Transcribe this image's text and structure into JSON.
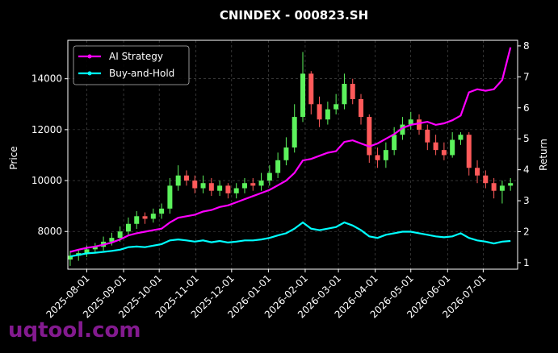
{
  "chart_data": {
    "type": "candlestick",
    "title": "CNINDEX - 000823.SH",
    "y_label": "Price",
    "y2_label": "Return",
    "watermark": "uqtool.com",
    "x": [
      "2025-07-18",
      "2025-07-25",
      "2025-08-01",
      "2025-08-08",
      "2025-08-15",
      "2025-08-22",
      "2025-08-29",
      "2025-09-05",
      "2025-09-12",
      "2025-09-19",
      "2025-09-26",
      "2025-10-03",
      "2025-10-10",
      "2025-10-17",
      "2025-10-24",
      "2025-10-31",
      "2025-11-07",
      "2025-11-14",
      "2025-11-21",
      "2025-11-28",
      "2025-12-05",
      "2025-12-12",
      "2025-12-19",
      "2025-12-26",
      "2026-01-02",
      "2026-01-09",
      "2026-01-16",
      "2026-01-23",
      "2026-01-30",
      "2026-02-06",
      "2026-02-13",
      "2026-02-20",
      "2026-02-27",
      "2026-03-06",
      "2026-03-13",
      "2026-03-20",
      "2026-03-27",
      "2026-04-03",
      "2026-04-10",
      "2026-04-17",
      "2026-04-24",
      "2026-05-01",
      "2026-05-08",
      "2026-05-15",
      "2026-05-22",
      "2026-05-29",
      "2026-06-05",
      "2026-06-12",
      "2026-06-19",
      "2026-06-26",
      "2026-07-03",
      "2026-07-10",
      "2026-07-17",
      "2026-07-24"
    ],
    "open": [
      6900,
      7050,
      7150,
      7300,
      7400,
      7600,
      7750,
      8000,
      8300,
      8600,
      8500,
      8700,
      8900,
      9800,
      10200,
      10000,
      9700,
      9900,
      9600,
      9800,
      9500,
      9700,
      9900,
      9800,
      10000,
      10300,
      10800,
      11300,
      12500,
      14200,
      13000,
      12400,
      12800,
      13000,
      13800,
      13200,
      12500,
      11000,
      10800,
      11200,
      11800,
      12200,
      12400,
      12000,
      11500,
      11200,
      11000,
      11600,
      11800,
      10500,
      10200,
      9900,
      9600,
      9800
    ],
    "high": [
      7250,
      7300,
      7450,
      7550,
      7800,
      7950,
      8200,
      8550,
      8800,
      8750,
      8900,
      9100,
      10100,
      10600,
      10400,
      10200,
      10200,
      10100,
      10000,
      9900,
      9900,
      10100,
      10100,
      10300,
      10600,
      11100,
      11700,
      13000,
      15050,
      14300,
      13300,
      13100,
      13400,
      14200,
      14000,
      13400,
      12600,
      11300,
      11500,
      12100,
      12500,
      12700,
      12600,
      12200,
      11800,
      11500,
      11900,
      11900,
      11900,
      10800,
      10400,
      10100,
      10000,
      10100
    ],
    "low": [
      6650,
      6850,
      7000,
      7150,
      7250,
      7450,
      7600,
      7850,
      8100,
      8300,
      8350,
      8500,
      8700,
      9600,
      9800,
      9500,
      9500,
      9400,
      9400,
      9300,
      9300,
      9500,
      9600,
      9600,
      9800,
      10100,
      10600,
      11100,
      12300,
      12600,
      12100,
      12200,
      12600,
      12800,
      13000,
      12200,
      10700,
      10500,
      10500,
      11000,
      11600,
      12000,
      11800,
      11200,
      11000,
      10800,
      10900,
      11400,
      10200,
      9900,
      9700,
      9300,
      9100,
      9600
    ],
    "close": [
      7050,
      7150,
      7300,
      7400,
      7600,
      7750,
      8000,
      8300,
      8600,
      8500,
      8700,
      8900,
      9800,
      10200,
      10000,
      9700,
      9900,
      9600,
      9800,
      9500,
      9700,
      9900,
      9800,
      10000,
      10300,
      10800,
      11300,
      12500,
      14200,
      13000,
      12400,
      12800,
      13000,
      13800,
      13200,
      12500,
      11000,
      10800,
      11200,
      11800,
      12200,
      12400,
      12000,
      11500,
      11200,
      11000,
      11600,
      11800,
      10500,
      10200,
      9900,
      9600,
      9800,
      9900
    ],
    "up_color": "#5cf25c",
    "down_color": "#ff5a5a",
    "series": [
      {
        "name": "AI Strategy",
        "color": "#ff00ff",
        "axis": "y2",
        "values": [
          1.35,
          1.42,
          1.48,
          1.52,
          1.58,
          1.65,
          1.75,
          1.88,
          1.95,
          2.0,
          2.05,
          2.1,
          2.3,
          2.45,
          2.5,
          2.55,
          2.65,
          2.7,
          2.8,
          2.85,
          2.95,
          3.05,
          3.15,
          3.25,
          3.35,
          3.5,
          3.65,
          3.9,
          4.3,
          4.35,
          4.45,
          4.55,
          4.6,
          4.9,
          4.95,
          4.85,
          4.75,
          4.85,
          5.0,
          5.15,
          5.35,
          5.45,
          5.5,
          5.55,
          5.45,
          5.5,
          5.6,
          5.75,
          6.5,
          6.6,
          6.55,
          6.6,
          6.9,
          7.95
        ]
      },
      {
        "name": "Buy-and-Hold",
        "color": "#00ffff",
        "axis": "y2",
        "values": [
          1.2,
          1.25,
          1.3,
          1.32,
          1.35,
          1.38,
          1.42,
          1.5,
          1.52,
          1.5,
          1.55,
          1.6,
          1.72,
          1.75,
          1.72,
          1.68,
          1.72,
          1.66,
          1.7,
          1.65,
          1.68,
          1.72,
          1.72,
          1.75,
          1.8,
          1.88,
          1.95,
          2.1,
          2.3,
          2.1,
          2.05,
          2.1,
          2.15,
          2.3,
          2.2,
          2.05,
          1.85,
          1.8,
          1.9,
          1.95,
          2.0,
          2.0,
          1.95,
          1.9,
          1.85,
          1.82,
          1.85,
          1.95,
          1.8,
          1.72,
          1.68,
          1.62,
          1.68,
          1.7
        ]
      }
    ],
    "xlim": [
      "2025-07-16",
      "2026-07-30"
    ],
    "xticks": [
      "2025-08-01",
      "2025-09-01",
      "2025-10-01",
      "2025-11-01",
      "2025-12-01",
      "2026-01-01",
      "2026-02-01",
      "2026-03-01",
      "2026-04-01",
      "2026-05-01",
      "2026-06-01",
      "2026-07-01"
    ],
    "ylim": [
      6520,
      15510
    ],
    "yticks": [
      8000,
      10000,
      12000,
      14000
    ],
    "y2lim": [
      0.79,
      8.18
    ],
    "y2ticks": [
      1,
      2,
      3,
      4,
      5,
      6,
      7,
      8
    ],
    "grid": true,
    "legend": "upper-left"
  }
}
